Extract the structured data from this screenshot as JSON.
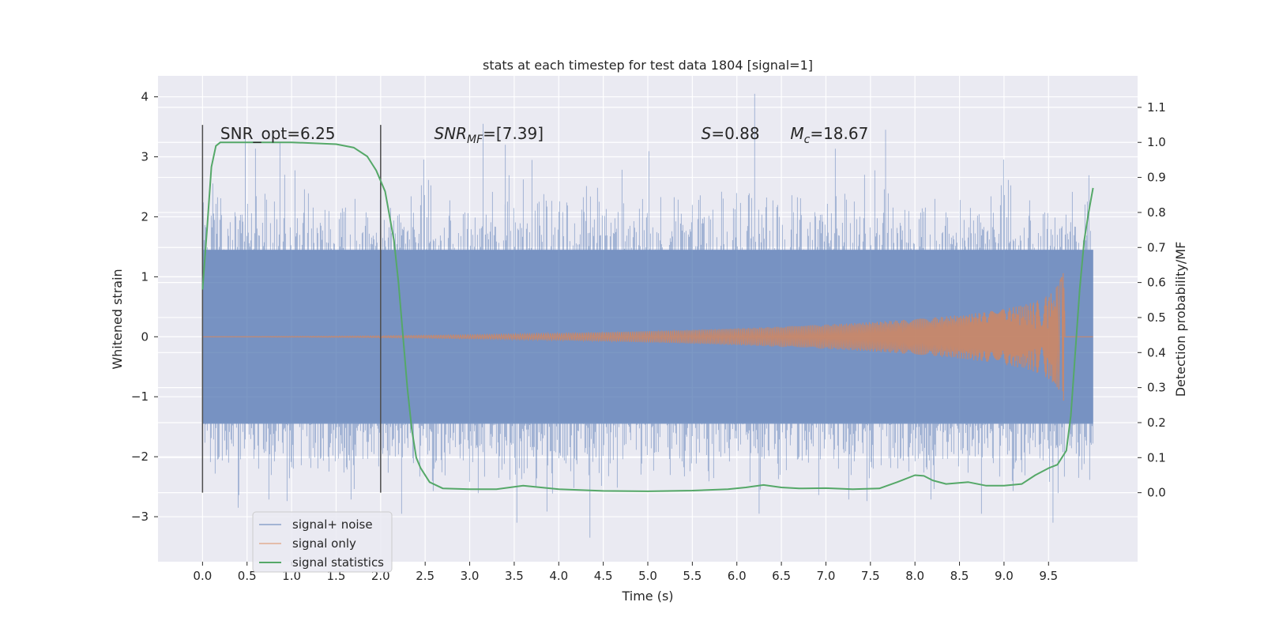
{
  "chart_data": {
    "type": "line",
    "title": "stats at each timestep for test data 1804 [signal=1]",
    "xlabel": "Time (s)",
    "ylabel_left": "Whitened strain",
    "ylabel_right": "Detection probability/MF",
    "xlim": [
      -0.5,
      10.5
    ],
    "ylim_left": [
      -3.75,
      4.35
    ],
    "ylim_right": [
      -0.197,
      1.19
    ],
    "x_ticks": [
      0.0,
      0.5,
      1.0,
      1.5,
      2.0,
      2.5,
      3.0,
      3.5,
      4.0,
      4.5,
      5.0,
      5.5,
      6.0,
      6.5,
      7.0,
      7.5,
      8.0,
      8.5,
      9.0,
      9.5
    ],
    "y_ticks_left": [
      -3,
      -2,
      -1,
      0,
      1,
      2,
      3,
      4
    ],
    "y_ticks_right": [
      0.0,
      0.1,
      0.2,
      0.3,
      0.4,
      0.5,
      0.6,
      0.7,
      0.8,
      0.9,
      1.0,
      1.1
    ],
    "grid": true,
    "legend_position": "lower-left",
    "annotations": [
      {
        "x": 0.2,
        "text": "SNR_opt=6.25",
        "kind": "plain"
      },
      {
        "x": 2.6,
        "kind": "snr_mf",
        "base": "SNR",
        "sub": "MF",
        "rest": "=[7.39]"
      },
      {
        "x": 5.6,
        "kind": "sym",
        "base": "S",
        "sub": "",
        "rest": "=0.88"
      },
      {
        "x": 6.6,
        "kind": "sym",
        "base": "M",
        "sub": "c",
        "rest": "=18.67"
      }
    ],
    "vlines": [
      0.0,
      2.0
    ],
    "series": [
      {
        "name": "signal+ noise",
        "color": "#4c72b0",
        "kind": "noise",
        "x_range": [
          0.0,
          10.0
        ],
        "band_typical": [
          -1.45,
          1.45
        ],
        "extremes": [
          {
            "x": 0.48,
            "y": 3.3
          },
          {
            "x": 0.87,
            "y": 3.25
          },
          {
            "x": 3.15,
            "y": 3.55
          },
          {
            "x": 3.4,
            "y": 3.2
          },
          {
            "x": 6.2,
            "y": 4.05
          },
          {
            "x": 7.67,
            "y": 3.45
          },
          {
            "x": 4.35,
            "y": -3.35
          },
          {
            "x": 3.53,
            "y": -3.1
          },
          {
            "x": 9.55,
            "y": -3.1
          },
          {
            "x": 0.4,
            "y": -2.85
          },
          {
            "x": 6.25,
            "y": -2.95
          }
        ]
      },
      {
        "name": "signal only",
        "color": "#dd8452",
        "kind": "chirp",
        "x_range": [
          0.0,
          10.0
        ],
        "merger_time": 9.68,
        "peak_amplitude": 1.3
      },
      {
        "name": "signal statistics",
        "color": "#55a868",
        "kind": "probability",
        "axis": "right",
        "x": [
          0.0,
          0.05,
          0.1,
          0.15,
          0.2,
          0.4,
          1.0,
          1.5,
          1.7,
          1.85,
          1.95,
          2.05,
          2.15,
          2.2,
          2.25,
          2.3,
          2.35,
          2.4,
          2.45,
          2.55,
          2.7,
          3.0,
          3.3,
          3.6,
          4.0,
          4.5,
          5.0,
          5.5,
          5.9,
          6.1,
          6.3,
          6.5,
          6.7,
          7.0,
          7.3,
          7.6,
          7.8,
          8.0,
          8.1,
          8.2,
          8.35,
          8.6,
          8.8,
          9.0,
          9.2,
          9.35,
          9.5,
          9.6,
          9.7,
          9.75,
          9.8,
          9.85,
          9.9,
          9.95,
          10.0
        ],
        "y": [
          0.58,
          0.75,
          0.93,
          0.99,
          1.0,
          1.0,
          1.0,
          0.995,
          0.985,
          0.96,
          0.92,
          0.86,
          0.72,
          0.6,
          0.45,
          0.3,
          0.18,
          0.1,
          0.07,
          0.03,
          0.012,
          0.01,
          0.01,
          0.02,
          0.01,
          0.005,
          0.004,
          0.006,
          0.01,
          0.015,
          0.022,
          0.015,
          0.012,
          0.013,
          0.01,
          0.012,
          0.03,
          0.05,
          0.048,
          0.035,
          0.025,
          0.03,
          0.02,
          0.02,
          0.025,
          0.05,
          0.07,
          0.08,
          0.12,
          0.22,
          0.4,
          0.58,
          0.72,
          0.8,
          0.87
        ]
      }
    ]
  }
}
